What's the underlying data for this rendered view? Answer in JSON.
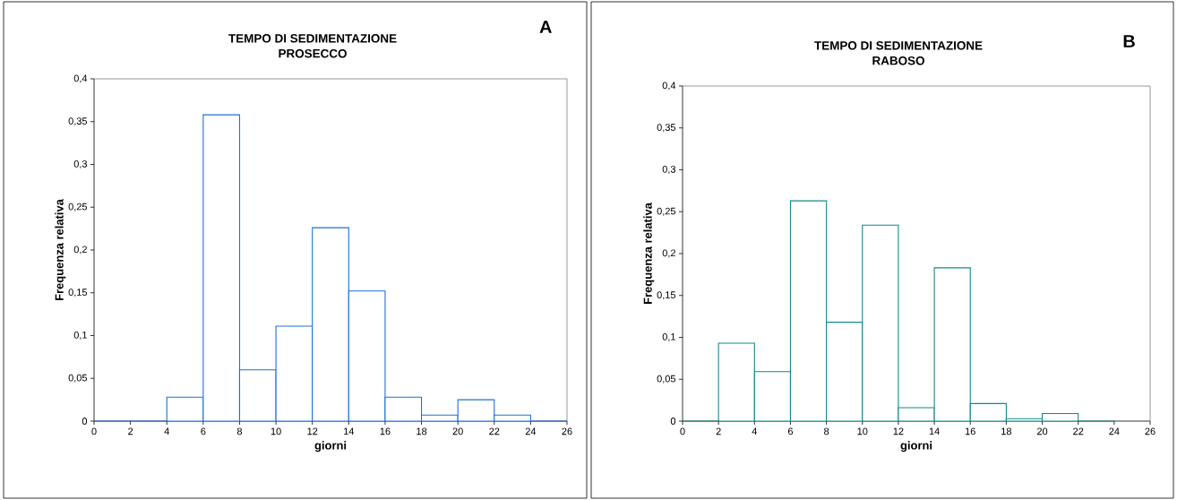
{
  "chart_data": [
    {
      "type": "histogram",
      "title": "TEMPO DI SEDIMENTAZIONE",
      "subtitle": "PROSECCO",
      "xlabel": "giorni",
      "ylabel": "Frequenza relativa",
      "annotations": [
        "A"
      ],
      "bins": [
        0,
        2,
        4,
        6,
        8,
        10,
        12,
        14,
        16,
        18,
        20,
        22,
        24,
        26
      ],
      "values": [
        0,
        0,
        0.028,
        0.358,
        0.06,
        0.111,
        0.226,
        0.152,
        0.028,
        0.007,
        0.025,
        0.007,
        0
      ],
      "color": "#1f6fd6",
      "xlim": [
        0,
        26
      ],
      "ylim": [
        0,
        0.4
      ],
      "xticks": [
        0,
        2,
        4,
        6,
        8,
        10,
        12,
        14,
        16,
        18,
        20,
        22,
        24,
        26
      ],
      "yticks": [
        0,
        {
          "value": 0.05,
          "label": "0,05"
        },
        {
          "value": 0.1,
          "label": "0,1"
        },
        {
          "value": 0.15,
          "label": "0,15"
        },
        {
          "value": 0.2,
          "label": "0,2"
        },
        {
          "value": 0.25,
          "label": "0,25"
        },
        {
          "value": 0.3,
          "label": "0,3"
        },
        {
          "value": 0.35,
          "label": "0,35"
        },
        {
          "value": 0.4,
          "label": "0,4"
        }
      ]
    },
    {
      "type": "histogram",
      "title": "TEMPO DI SEDIMENTAZIONE",
      "subtitle": "RABOSO",
      "xlabel": "giorni",
      "ylabel": "Frequenza relativa",
      "annotations": [
        "B"
      ],
      "bins": [
        0,
        2,
        4,
        6,
        8,
        10,
        12,
        14,
        16,
        18,
        20,
        22,
        24
      ],
      "values": [
        0,
        0.093,
        0.059,
        0.263,
        0.118,
        0.234,
        0.016,
        0.183,
        0.021,
        0.003,
        0.009,
        0
      ],
      "color": "#108a8a",
      "xlim": [
        0,
        26
      ],
      "ylim": [
        0,
        0.4
      ],
      "xticks": [
        0,
        2,
        4,
        6,
        8,
        10,
        12,
        14,
        16,
        18,
        20,
        22,
        24,
        26
      ],
      "yticks": [
        0,
        {
          "value": 0.05,
          "label": "0,05"
        },
        {
          "value": 0.1,
          "label": "0,1"
        },
        {
          "value": 0.15,
          "label": "0,15"
        },
        {
          "value": 0.2,
          "label": "0,2"
        },
        {
          "value": 0.25,
          "label": "0,25"
        },
        {
          "value": 0.3,
          "label": "0,3"
        },
        {
          "value": 0.35,
          "label": "0,35"
        },
        {
          "value": 0.4,
          "label": "0,4"
        }
      ]
    }
  ]
}
